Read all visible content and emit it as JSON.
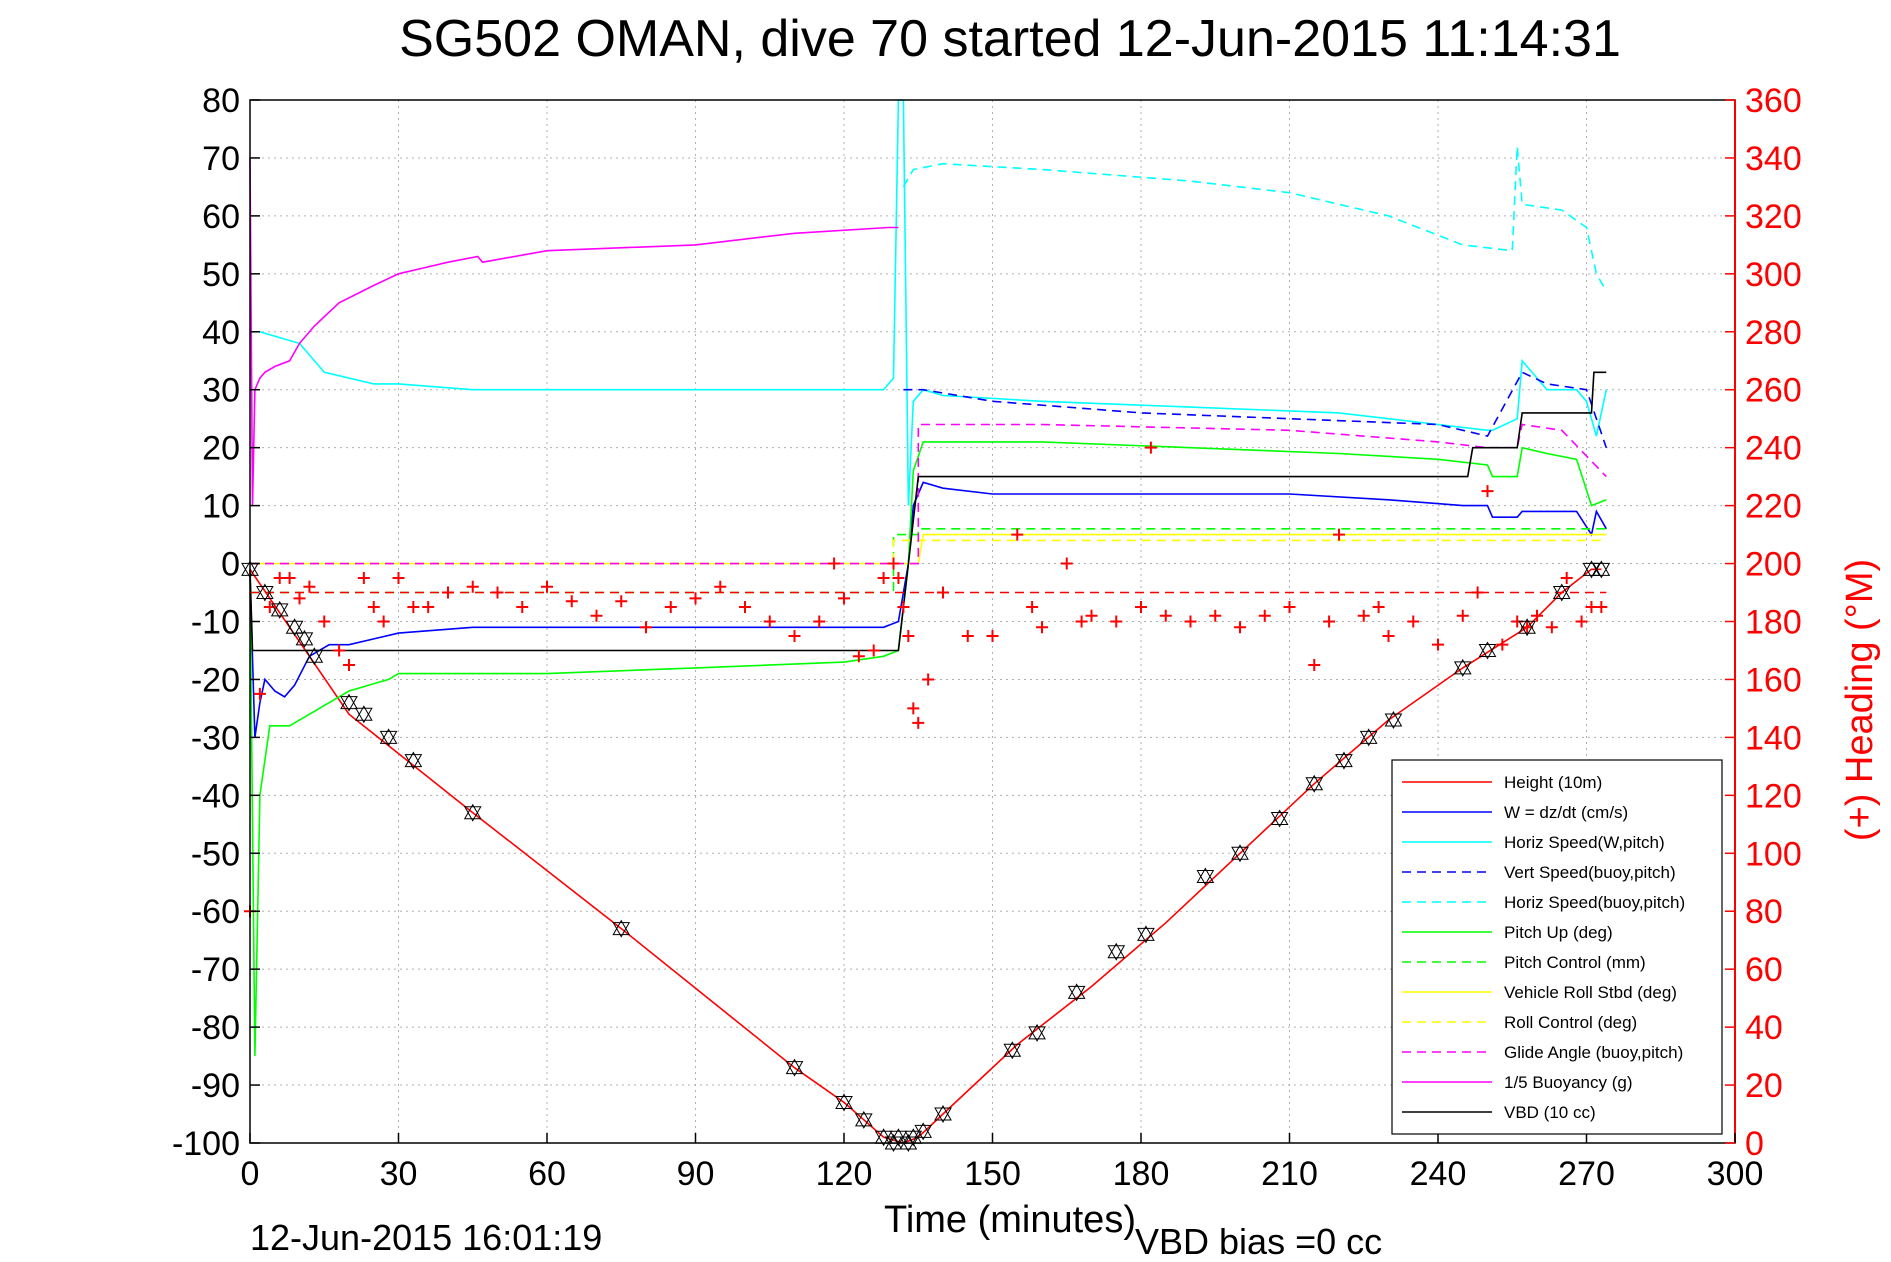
{
  "chart_data": {
    "type": "line",
    "title": "SG502 OMAN, dive 70 started 12-Jun-2015 11:14:31",
    "xlabel": "Time (minutes)",
    "ylabel": "",
    "y2label": "(+) Heading (°M)",
    "footer_left": "12-Jun-2015 16:01:19",
    "footer_right": "VBD bias =0 cc",
    "xlim": [
      0,
      300
    ],
    "ylim": [
      -100,
      80
    ],
    "y2lim": [
      0,
      360
    ],
    "grid": true,
    "legend_position": "bottom-right",
    "xticks": [
      "0",
      "30",
      "60",
      "90",
      "120",
      "150",
      "180",
      "210",
      "240",
      "270",
      "300"
    ],
    "yticks": [
      "80",
      "70",
      "60",
      "50",
      "40",
      "30",
      "20",
      "10",
      "0",
      "-10",
      "-20",
      "-30",
      "-40",
      "-50",
      "-60",
      "-70",
      "-80",
      "-90",
      "-100"
    ],
    "y2ticks": [
      "360",
      "340",
      "320",
      "300",
      "280",
      "260",
      "240",
      "220",
      "200",
      "180",
      "160",
      "140",
      "120",
      "100",
      "80",
      "60",
      "40",
      "20",
      "0"
    ],
    "colors": {
      "height": "#ff0000",
      "w": "#0000ff",
      "horiz_w": "#00ffff",
      "vert_buoy": "#0000ff",
      "horiz_buoy": "#00ffff",
      "pitch": "#00ff00",
      "pitch_ctrl": "#00ff00",
      "roll": "#ffff00",
      "roll_ctrl": "#ffff00",
      "glide": "#ff00ff",
      "buoy": "#ff00ff",
      "vbd": "#000000",
      "heading": "#ff0000"
    },
    "legend": [
      {
        "label": "Height (10m)",
        "key": "height",
        "dash": false
      },
      {
        "label": "W = dz/dt (cm/s)",
        "key": "w",
        "dash": false
      },
      {
        "label": "Horiz Speed(W,pitch)",
        "key": "horiz_w",
        "dash": false
      },
      {
        "label": "Vert Speed(buoy,pitch)",
        "key": "vert_buoy",
        "dash": true
      },
      {
        "label": "Horiz Speed(buoy,pitch)",
        "key": "horiz_buoy",
        "dash": true
      },
      {
        "label": "Pitch Up (deg)",
        "key": "pitch",
        "dash": false
      },
      {
        "label": "Pitch Control (mm)",
        "key": "pitch_ctrl",
        "dash": true
      },
      {
        "label": "Vehicle Roll Stbd (deg)",
        "key": "roll",
        "dash": false
      },
      {
        "label": "Roll Control (deg)",
        "key": "roll_ctrl",
        "dash": true
      },
      {
        "label": "Glide Angle (buoy,pitch)",
        "key": "glide",
        "dash": true
      },
      {
        "label": "1/5 Buoyancy (g)",
        "key": "buoy",
        "dash": false
      },
      {
        "label": "VBD (10 cc)",
        "key": "vbd",
        "dash": false
      }
    ],
    "series": [
      {
        "key": "height",
        "dash": false,
        "x": [
          0,
          20,
          45,
          75,
          110,
          120,
          128,
          132,
          135,
          140,
          155,
          170,
          185,
          200,
          215,
          230,
          245,
          258,
          265,
          271,
          273
        ],
        "y": [
          -1,
          -26,
          -43,
          -63,
          -87,
          -93,
          -99,
          -100,
          -99,
          -95,
          -83,
          -73,
          -62,
          -50,
          -38,
          -27,
          -18,
          -11,
          -5,
          -1,
          -1
        ]
      },
      {
        "key": "w",
        "dash": false,
        "x": [
          0,
          1,
          2,
          3,
          5,
          7,
          9,
          12,
          16,
          20,
          25,
          30,
          45,
          60,
          75,
          90,
          105,
          120,
          128,
          131,
          133,
          134,
          136,
          140,
          150,
          170,
          190,
          210,
          230,
          245,
          250,
          251,
          256,
          257,
          262,
          268,
          271,
          272,
          274
        ],
        "y": [
          -2,
          -30,
          -24,
          -20,
          -22,
          -23,
          -21,
          -16,
          -14,
          -14,
          -13,
          -12,
          -11,
          -11,
          -11,
          -11,
          -11,
          -11,
          -11,
          -10,
          0,
          10,
          14,
          13,
          12,
          12,
          12,
          12,
          11,
          10,
          10,
          8,
          8,
          9,
          9,
          9,
          5,
          9,
          6
        ]
      },
      {
        "key": "horiz_w",
        "dash": false,
        "x": [
          0,
          2,
          6,
          10,
          15,
          25,
          30,
          45,
          60,
          75,
          90,
          105,
          120,
          128,
          130,
          131,
          132,
          133,
          134,
          136,
          140,
          160,
          190,
          220,
          240,
          250,
          251,
          256,
          257,
          262,
          268,
          270,
          272,
          274
        ],
        "y": [
          40,
          40,
          39,
          38,
          33,
          31,
          31,
          30,
          30,
          30,
          30,
          30,
          30,
          30,
          32,
          80,
          80,
          10,
          28,
          30,
          29,
          28,
          27,
          26,
          24,
          23,
          23,
          25,
          35,
          30,
          30,
          28,
          22,
          30
        ]
      },
      {
        "key": "vert_buoy",
        "dash": true,
        "x": [
          132,
          136,
          150,
          180,
          210,
          240,
          250,
          257,
          262,
          270,
          274
        ],
        "y": [
          30,
          30,
          28,
          26,
          25,
          24,
          22,
          33,
          31,
          30,
          20
        ]
      },
      {
        "key": "horiz_buoy",
        "dash": true,
        "x": [
          132,
          134,
          140,
          160,
          190,
          210,
          230,
          245,
          255,
          256,
          257,
          265,
          270,
          272,
          274
        ],
        "y": [
          65,
          68,
          69,
          68,
          66,
          64,
          60,
          55,
          54,
          72,
          62,
          61,
          58,
          50,
          47
        ]
      },
      {
        "key": "pitch",
        "dash": false,
        "x": [
          0,
          1,
          2,
          4,
          8,
          14,
          20,
          28,
          30,
          45,
          60,
          90,
          120,
          128,
          131,
          133,
          134,
          136,
          140,
          160,
          190,
          220,
          240,
          250,
          251,
          256,
          257,
          262,
          268,
          271,
          274
        ],
        "y": [
          -2,
          -85,
          -40,
          -28,
          -28,
          -25,
          -22,
          -20,
          -19,
          -19,
          -19,
          -18,
          -17,
          -16,
          -15,
          0,
          16,
          21,
          21,
          21,
          20,
          19,
          18,
          17,
          15,
          15,
          20,
          19,
          18,
          10,
          11
        ]
      },
      {
        "key": "pitch_ctrl",
        "dash": true,
        "x": [
          0,
          130,
          130,
          135,
          135,
          274
        ],
        "y": [
          -5,
          -5,
          5,
          5,
          6,
          6
        ]
      },
      {
        "key": "roll",
        "dash": false,
        "x": [
          0,
          130,
          131,
          135,
          136,
          274
        ],
        "y": [
          0,
          0,
          0,
          0,
          5,
          5
        ]
      },
      {
        "key": "roll_ctrl",
        "dash": true,
        "x": [
          0,
          130,
          130,
          274
        ],
        "y": [
          0,
          0,
          4,
          4
        ]
      },
      {
        "key": "glide",
        "dash": true,
        "x": [
          0,
          130,
          131,
          135,
          135,
          160,
          210,
          240,
          250,
          256,
          257,
          265,
          274
        ],
        "y": [
          0,
          0,
          0,
          0,
          24,
          24,
          23,
          21,
          20,
          20,
          24,
          23,
          15
        ]
      },
      {
        "key": "buoy",
        "dash": false,
        "x": [
          0,
          0.5,
          1,
          2,
          3,
          5,
          8,
          10,
          13,
          18,
          25,
          30,
          35,
          40,
          46,
          47,
          60,
          90,
          110,
          129,
          130,
          131
        ],
        "y": [
          70,
          10,
          30,
          32,
          33,
          34,
          35,
          38,
          41,
          45,
          48,
          50,
          51,
          52,
          53,
          52,
          54,
          55,
          57,
          58,
          58,
          58
        ]
      },
      {
        "key": "vbd",
        "dash": false,
        "x": [
          0,
          0.5,
          1,
          130,
          131,
          133,
          135,
          246,
          247,
          256,
          257,
          271,
          271.5,
          274
        ],
        "y": [
          -1,
          -15,
          -15,
          -15,
          -15,
          0,
          15,
          15,
          20,
          20,
          26,
          26,
          33,
          33
        ]
      },
      {
        "key": "heading",
        "dash": false,
        "marker": "+",
        "axis": "right",
        "x": [
          0,
          2,
          4,
          6,
          8,
          10,
          12,
          15,
          18,
          20,
          23,
          25,
          27,
          30,
          33,
          36,
          40,
          45,
          50,
          55,
          60,
          65,
          70,
          75,
          80,
          85,
          90,
          95,
          100,
          105,
          110,
          115,
          118,
          120,
          123,
          126,
          128,
          130,
          131,
          132,
          133,
          134,
          135,
          137,
          140,
          145,
          150,
          155,
          158,
          160,
          165,
          168,
          170,
          175,
          180,
          182,
          185,
          190,
          195,
          200,
          205,
          210,
          215,
          218,
          220,
          225,
          228,
          230,
          235,
          240,
          245,
          248,
          250,
          253,
          256,
          258,
          260,
          263,
          266,
          269,
          271,
          273
        ],
        "y": [
          80,
          155,
          185,
          195,
          195,
          188,
          192,
          180,
          170,
          165,
          195,
          185,
          180,
          195,
          185,
          185,
          190,
          192,
          190,
          185,
          192,
          187,
          182,
          187,
          178,
          185,
          188,
          192,
          185,
          180,
          175,
          180,
          200,
          188,
          168,
          170,
          195,
          200,
          195,
          185,
          175,
          150,
          145,
          160,
          190,
          175,
          175,
          210,
          185,
          178,
          200,
          180,
          182,
          180,
          185,
          240,
          182,
          180,
          182,
          178,
          182,
          185,
          165,
          180,
          210,
          182,
          185,
          175,
          180,
          172,
          182,
          190,
          225,
          172,
          180,
          178,
          182,
          178,
          195,
          180,
          185,
          185
        ]
      },
      {
        "key": "heading_ref",
        "dash": true,
        "axis": "right",
        "x": [
          0,
          274
        ],
        "y": [
          190,
          190
        ]
      }
    ],
    "markers": {
      "symbol": "triangle",
      "x": [
        0,
        3,
        6,
        9,
        11,
        13,
        20,
        23,
        28,
        33,
        45,
        75,
        110,
        120,
        124,
        128,
        130,
        131,
        133,
        134,
        136,
        140,
        154,
        159,
        167,
        175,
        181,
        193,
        200,
        208,
        215,
        221,
        226,
        231,
        245,
        250,
        258,
        265,
        271,
        273
      ],
      "y": [
        -1,
        -5,
        -8,
        -11,
        -13,
        -16,
        -24,
        -26,
        -30,
        -34,
        -43,
        -63,
        -87,
        -93,
        -96,
        -99,
        -100,
        -99,
        -100,
        -99,
        -98,
        -95,
        -84,
        -81,
        -74,
        -67,
        -64,
        -54,
        -50,
        -44,
        -38,
        -34,
        -30,
        -27,
        -18,
        -15,
        -11,
        -5,
        -1,
        -1
      ]
    }
  }
}
